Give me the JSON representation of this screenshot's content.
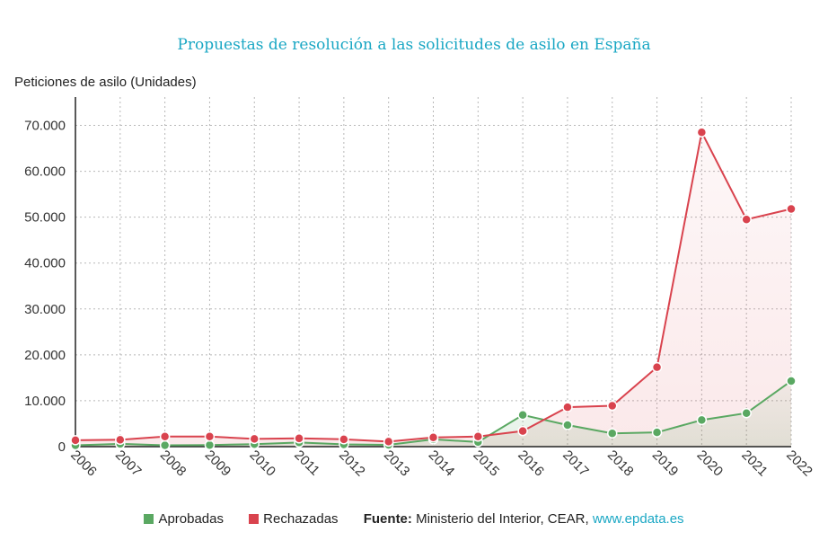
{
  "chart_data": {
    "type": "line",
    "title": "Propuestas de resolución a las solicitudes de asilo en España",
    "ylabel": "Peticiones de asilo (Unidades)",
    "categories": [
      "2006",
      "2007",
      "2008",
      "2009",
      "2010",
      "2011",
      "2012",
      "2013",
      "2014",
      "2015",
      "2016",
      "2017",
      "2018",
      "2019",
      "2020",
      "2021",
      "2022"
    ],
    "ylim": [
      0,
      75000
    ],
    "yticks": [
      0,
      10000,
      20000,
      30000,
      40000,
      50000,
      60000,
      70000
    ],
    "ytick_labels": [
      "0",
      "10.000",
      "20.000",
      "30.000",
      "40.000",
      "50.000",
      "60.000",
      "70.000"
    ],
    "grid": true,
    "legend_position": "bottom",
    "series": [
      {
        "name": "Aprobadas",
        "color": "#5aa862",
        "values": [
          300,
          600,
          300,
          350,
          550,
          900,
          500,
          400,
          1600,
          1000,
          6900,
          4700,
          2900,
          3100,
          5800,
          7300,
          14300
        ]
      },
      {
        "name": "Rechazadas",
        "color": "#d9434e",
        "values": [
          1400,
          1500,
          2200,
          2200,
          1700,
          1800,
          1600,
          1100,
          2000,
          2200,
          3400,
          8600,
          8900,
          17300,
          68500,
          49500,
          51800
        ]
      }
    ]
  },
  "source": {
    "label": "Fuente:",
    "text": "Ministerio del Interior, CEAR,",
    "link": "www.epdata.es"
  }
}
